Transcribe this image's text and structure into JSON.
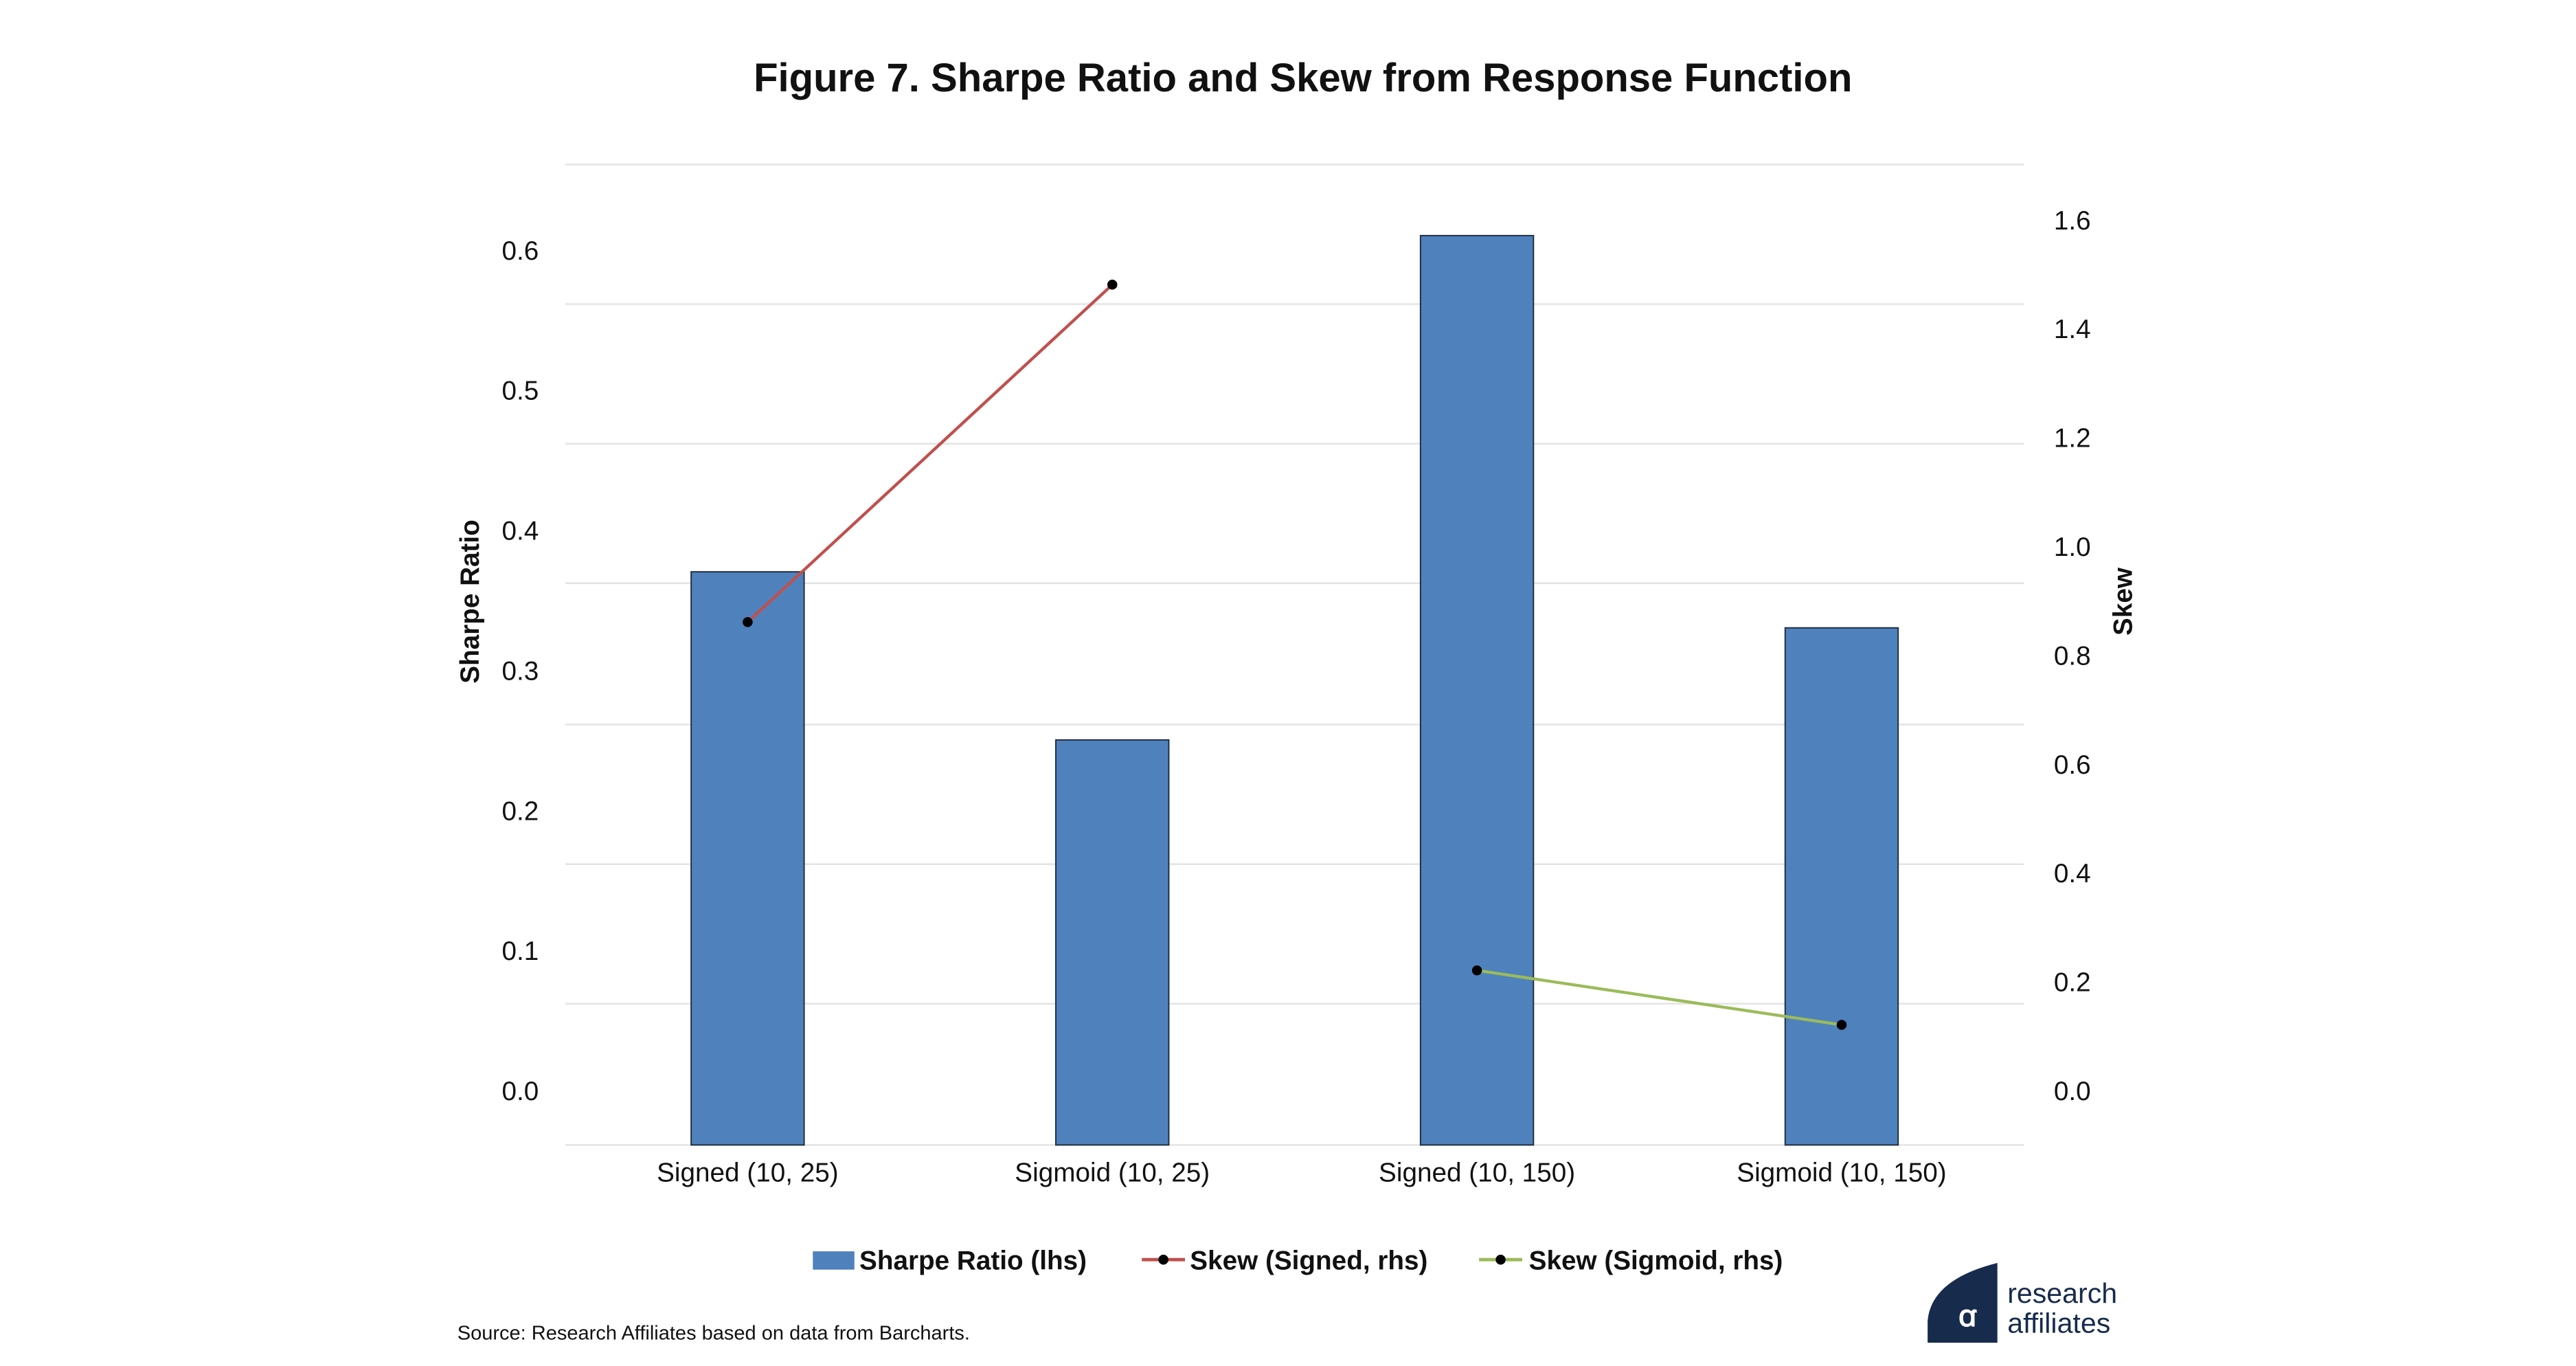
{
  "chart_data": {
    "type": "bar",
    "title": "Figure 7. Sharpe Ratio and Skew from Response Function",
    "categories": [
      "Signed (10, 25)",
      "Sigmoid (10, 25)",
      "Signed (10, 150)",
      "Sigmoid (10, 150)"
    ],
    "ylabel": "Sharpe Ratio",
    "y2label": "Skew",
    "ylim": [
      0,
      0.6
    ],
    "y2lim": [
      0,
      1.6
    ],
    "yticks": [
      "0.0",
      "0.1",
      "0.2",
      "0.3",
      "0.4",
      "0.5",
      "0.6"
    ],
    "y2ticks": [
      "0.0",
      "0.2",
      "0.4",
      "0.6",
      "0.8",
      "1.0",
      "1.2",
      "1.4",
      "1.6"
    ],
    "grid": true,
    "legend_position": "bottom",
    "series": [
      {
        "name": "Sharpe Ratio (lhs)",
        "type": "bar",
        "axis": "left",
        "color": "#4F81BD",
        "values": [
          0.37,
          0.25,
          0.61,
          0.33
        ]
      },
      {
        "name": "Skew (Signed, rhs)",
        "type": "line",
        "axis": "right",
        "color": "#C0504D",
        "values": [
          0.86,
          1.48,
          null,
          null
        ]
      },
      {
        "name": "Skew (Sigmoid, rhs)",
        "type": "line",
        "axis": "right",
        "color": "#9BBB59",
        "values": [
          null,
          null,
          0.22,
          0.12
        ]
      }
    ]
  },
  "source": "Source: Research Affiliates based on data from Barcharts.",
  "logo": {
    "line1": "research",
    "line2": "affiliates",
    "mark": "ra",
    "color": "#172B4D"
  }
}
